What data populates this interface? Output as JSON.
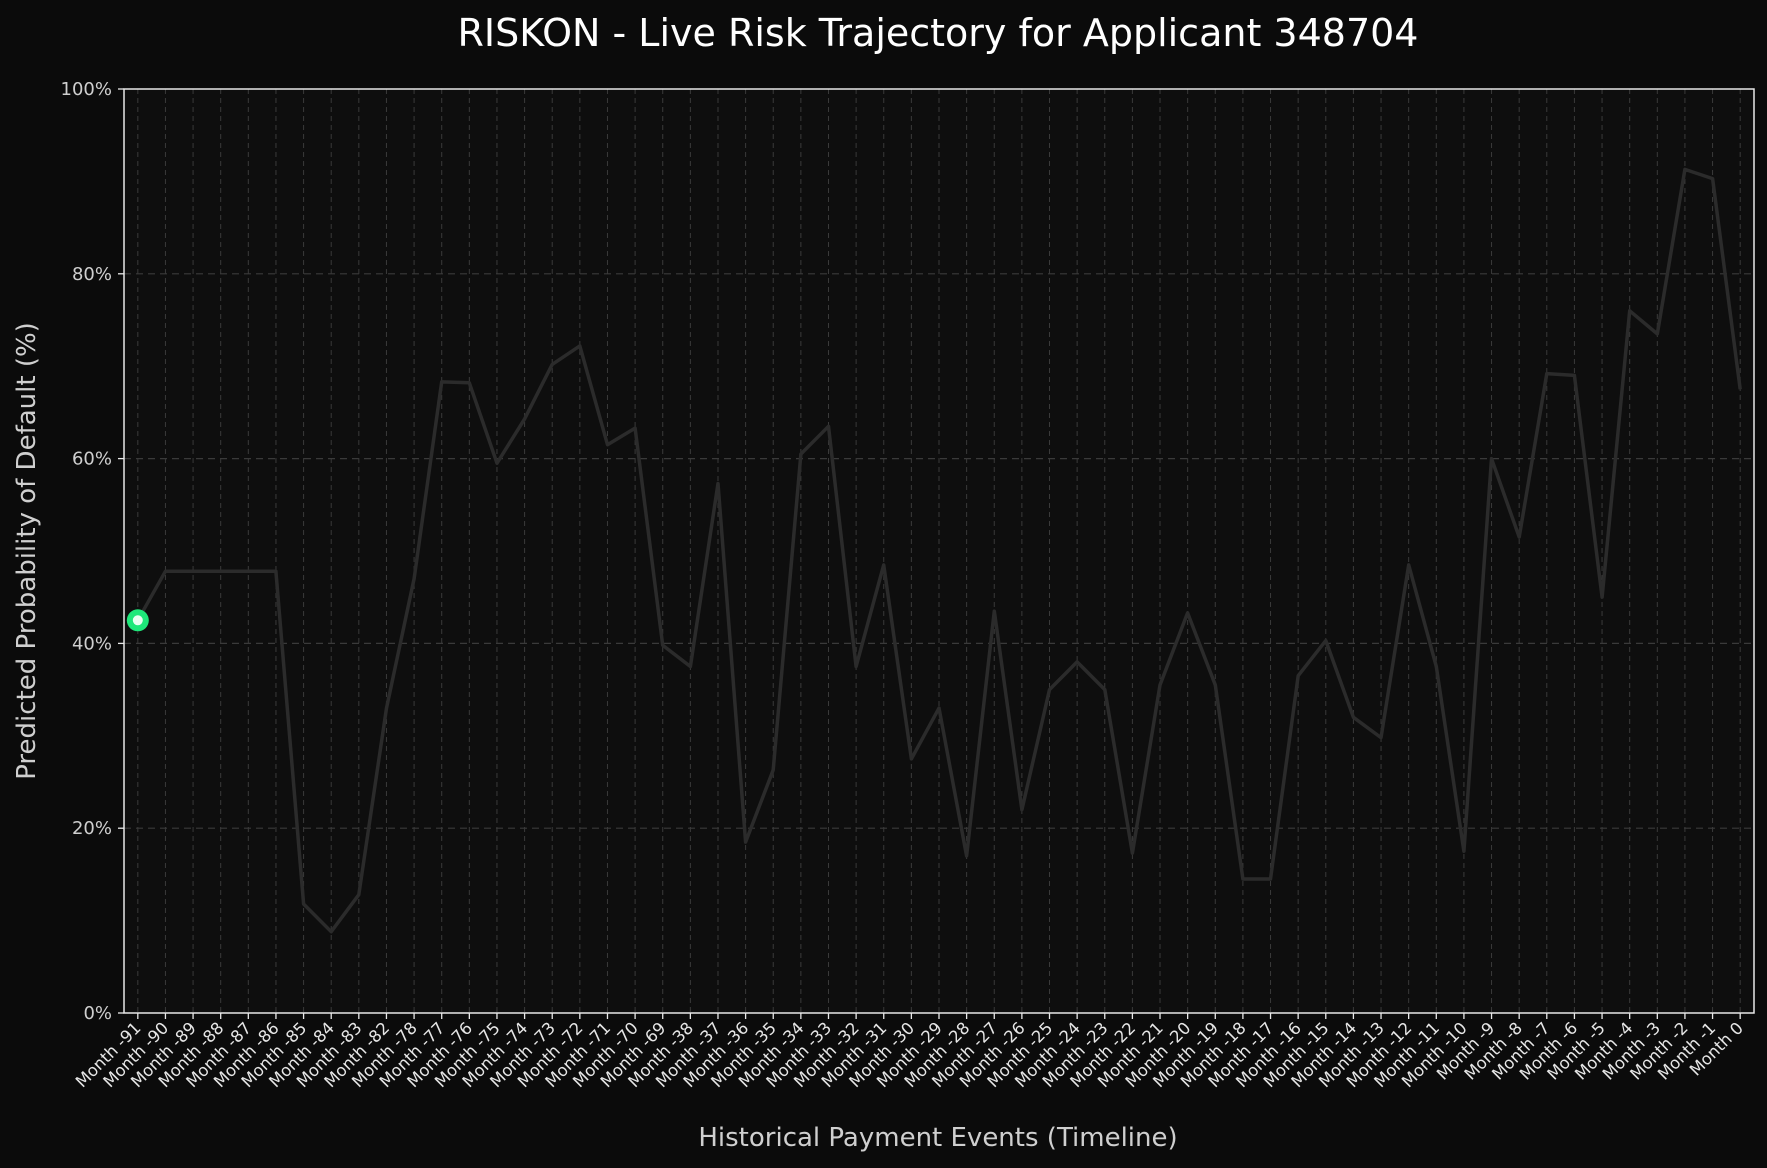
{
  "chart_data": {
    "type": "line",
    "title": "RISKON - Live Risk Trajectory for Applicant 348704",
    "xlabel": "Historical Payment Events (Timeline)",
    "ylabel": "Predicted Probability of Default (%)",
    "ylim": [
      0,
      100
    ],
    "yticks": [
      "0%",
      "20%",
      "40%",
      "60%",
      "80%",
      "100%"
    ],
    "grid": true,
    "categories": [
      "Month -91",
      "Month -90",
      "Month -89",
      "Month -88",
      "Month -87",
      "Month -86",
      "Month -85",
      "Month -84",
      "Month -83",
      "Month -82",
      "Month -78",
      "Month -77",
      "Month -76",
      "Month -75",
      "Month -74",
      "Month -73",
      "Month -72",
      "Month -71",
      "Month -70",
      "Month -69",
      "Month -38",
      "Month -37",
      "Month -36",
      "Month -35",
      "Month -34",
      "Month -33",
      "Month -32",
      "Month -31",
      "Month -30",
      "Month -29",
      "Month -28",
      "Month -27",
      "Month -26",
      "Month -25",
      "Month -24",
      "Month -23",
      "Month -22",
      "Month -21",
      "Month -20",
      "Month -19",
      "Month -18",
      "Month -17",
      "Month -16",
      "Month -15",
      "Month -14",
      "Month -13",
      "Month -12",
      "Month -11",
      "Month -10",
      "Month -9",
      "Month -8",
      "Month -7",
      "Month -6",
      "Month -5",
      "Month -4",
      "Month -3",
      "Month -2",
      "Month -1",
      "Month 0"
    ],
    "series": [
      {
        "values": [
          42.5,
          47.8,
          47.8,
          47.8,
          47.8,
          47.8,
          11.8,
          8.8,
          12.8,
          33.0,
          47.0,
          68.3,
          68.2,
          59.5,
          64.3,
          70.2,
          72.2,
          61.5,
          63.3,
          39.8,
          37.5,
          57.3,
          18.5,
          26.3,
          60.5,
          63.5,
          37.5,
          48.5,
          27.5,
          33.0,
          17.0,
          43.5,
          22.0,
          35.0,
          38.0,
          35.0,
          17.3,
          35.5,
          43.3,
          35.5,
          14.5,
          14.5,
          36.5,
          40.3,
          32.0,
          29.8,
          48.5,
          37.5,
          17.5,
          60.0,
          51.5,
          69.2,
          69.0,
          45.0,
          76.0,
          73.5,
          91.3,
          90.3,
          67.5
        ]
      }
    ],
    "current_point_index": 0,
    "colors": {
      "background": "#0b0b0b",
      "plot_background": "#0e0e0e",
      "line": "#2b2b2b",
      "grid": "#3a3a3a",
      "highlight": "#1ee87a",
      "axis": "#e8e8e8"
    }
  }
}
